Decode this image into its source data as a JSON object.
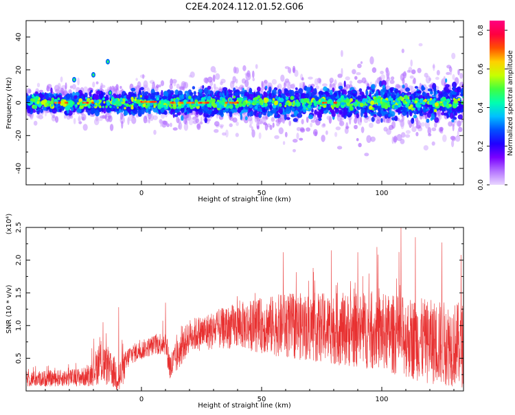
{
  "title": "C2E4.2024.112.01.52.G06",
  "chart_data": [
    {
      "type": "heatmap",
      "xlabel": "Height of straight line (km)",
      "ylabel": "Frequency (Hz)",
      "xlim": [
        -48,
        134
      ],
      "ylim": [
        -50,
        50
      ],
      "xticks": [
        0,
        50,
        100
      ],
      "yticks": [
        -40,
        -20,
        0,
        20,
        40
      ],
      "colorbar": {
        "label": "Normalized spectral amplitude",
        "range": [
          0.0,
          0.85
        ],
        "ticks": [
          0.0,
          0.2,
          0.4,
          0.6,
          0.8
        ],
        "tick_labels": [
          "0.0",
          "0.2",
          "0.4",
          "0.6",
          "0.8"
        ],
        "colormap": [
          "#e9d6ff",
          "#b473ff",
          "#7a00ff",
          "#2000ff",
          "#0050ff",
          "#00c0ff",
          "#00ffb0",
          "#40ff40",
          "#c8ff00",
          "#ffd000",
          "#ff5000",
          "#ff0040",
          "#ff0080"
        ]
      },
      "band": {
        "center_hz": 0,
        "half_width_hz_start": 3,
        "half_width_hz_end": 6,
        "outer_spread_hz": 9
      },
      "hot_spots": [
        {
          "x": 2,
          "y": 0.5
        },
        {
          "x": 5,
          "y": 0.5
        },
        {
          "x": 14,
          "y": 0
        },
        {
          "x": 22,
          "y": 0
        },
        {
          "x": 27,
          "y": 0
        },
        {
          "x": 38,
          "y": 0
        },
        {
          "x": -34,
          "y": 0
        },
        {
          "x": -22,
          "y": 0
        },
        {
          "x": 78,
          "y": 0
        }
      ],
      "outliers": [
        {
          "x": -28,
          "y": 14
        },
        {
          "x": -20,
          "y": 17
        },
        {
          "x": -14,
          "y": 25
        },
        {
          "x": -13,
          "y": 6
        }
      ]
    },
    {
      "type": "line",
      "xlabel": "Height of straight line (km)",
      "ylabel": "SNR (10 * v/v)",
      "yscale_label": "(x10⁴)",
      "xlim": [
        -48,
        134
      ],
      "ylim": [
        0,
        2.5
      ],
      "xticks": [
        0,
        50,
        100
      ],
      "yticks": [
        0.5,
        1.0,
        1.5,
        2.0,
        2.5
      ],
      "ytick_labels": [
        "0.5",
        "1.0",
        "1.5",
        "2.0",
        "2.5"
      ],
      "color": "#e83030",
      "envelope": [
        {
          "x": -48,
          "base": 0.18,
          "spread": 0.12
        },
        {
          "x": -30,
          "base": 0.2,
          "spread": 0.13
        },
        {
          "x": -22,
          "base": 0.22,
          "spread": 0.15
        },
        {
          "x": -17,
          "base": 0.45,
          "spread": 0.35
        },
        {
          "x": -12,
          "base": 0.3,
          "spread": 0.25
        },
        {
          "x": -9,
          "base": 0.2,
          "spread": 0.3
        },
        {
          "x": -5,
          "base": 0.55,
          "spread": 0.15
        },
        {
          "x": 5,
          "base": 0.7,
          "spread": 0.15
        },
        {
          "x": 10,
          "base": 0.75,
          "spread": 0.2
        },
        {
          "x": 12,
          "base": 0.35,
          "spread": 0.25
        },
        {
          "x": 20,
          "base": 0.85,
          "spread": 0.25
        },
        {
          "x": 40,
          "base": 1.0,
          "spread": 0.35
        },
        {
          "x": 60,
          "base": 1.0,
          "spread": 0.5
        },
        {
          "x": 80,
          "base": 0.95,
          "spread": 0.55
        },
        {
          "x": 100,
          "base": 0.9,
          "spread": 0.6
        },
        {
          "x": 120,
          "base": 0.75,
          "spread": 0.65
        },
        {
          "x": 134,
          "base": 0.7,
          "spread": 0.65
        }
      ],
      "peaks": [
        {
          "x": -16,
          "y": 1.05
        },
        {
          "x": -9.5,
          "y": 1.28
        },
        {
          "x": 10,
          "y": 1.35
        },
        {
          "x": 59,
          "y": 2.12
        },
        {
          "x": 79,
          "y": 2.15
        },
        {
          "x": 90,
          "y": 2.12
        },
        {
          "x": 98,
          "y": 2.2
        },
        {
          "x": 108,
          "y": 2.5
        },
        {
          "x": 114,
          "y": 2.35
        },
        {
          "x": 125,
          "y": 2.27
        },
        {
          "x": 133,
          "y": 2.08
        }
      ]
    }
  ]
}
